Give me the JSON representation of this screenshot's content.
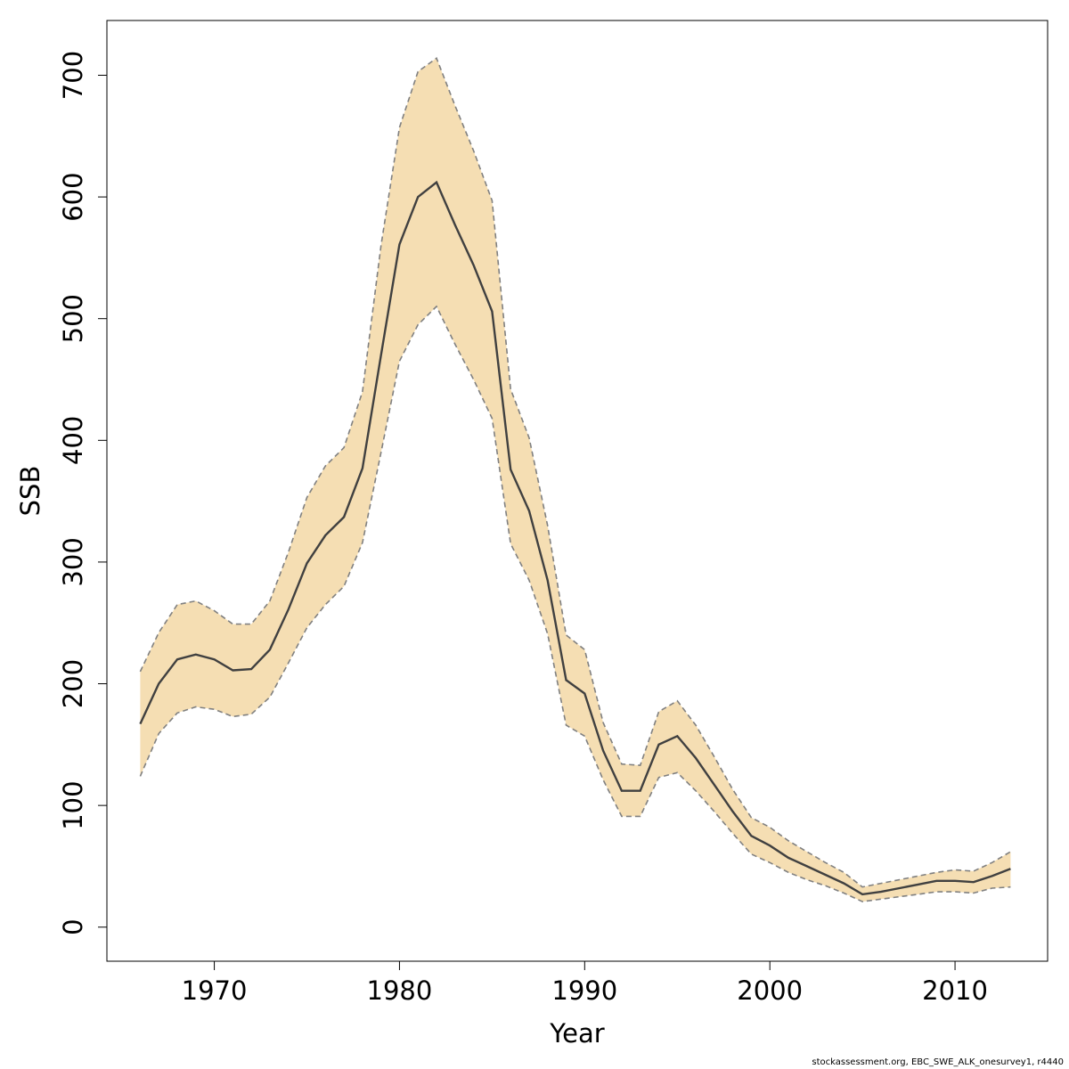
{
  "chart_data": {
    "type": "area",
    "title": "",
    "xlabel": "Year",
    "ylabel": "SSB",
    "xlim": [
      1964.2,
      2015.0
    ],
    "ylim": [
      -28,
      745
    ],
    "x_ticks": [
      1970,
      1980,
      1990,
      2000,
      2010
    ],
    "y_ticks": [
      0,
      100,
      200,
      300,
      400,
      500,
      600,
      700
    ],
    "grid": false,
    "legend": "none",
    "colors": {
      "band": "#f5deb3",
      "line": "#404040",
      "bounds": "#808080",
      "frame": "#000000"
    },
    "x": [
      1966,
      1967,
      1968,
      1969,
      1970,
      1971,
      1972,
      1973,
      1974,
      1975,
      1976,
      1977,
      1978,
      1979,
      1980,
      1981,
      1982,
      1983,
      1984,
      1985,
      1986,
      1987,
      1988,
      1989,
      1990,
      1991,
      1992,
      1993,
      1994,
      1995,
      1996,
      1997,
      1998,
      1999,
      2000,
      2001,
      2002,
      2003,
      2004,
      2005,
      2006,
      2007,
      2008,
      2009,
      2010,
      2011,
      2012,
      2013
    ],
    "series": [
      {
        "name": "",
        "role": "estimate",
        "values": [
          167,
          200,
          220,
          224,
          220,
          211,
          212,
          228,
          261,
          299,
          322,
          337,
          377,
          470,
          561,
          600,
          612,
          577,
          544,
          506,
          376,
          342,
          285,
          203,
          192,
          145,
          112,
          112,
          150,
          157,
          139,
          117,
          95,
          75,
          67,
          57,
          50,
          43,
          36,
          27,
          29,
          32,
          35,
          38,
          38,
          37,
          42,
          48
        ]
      },
      {
        "name": "",
        "role": "upper",
        "values": [
          210,
          242,
          265,
          268,
          260,
          249,
          249,
          268,
          308,
          353,
          379,
          394,
          440,
          560,
          657,
          703,
          714,
          675,
          638,
          597,
          442,
          402,
          330,
          240,
          228,
          168,
          134,
          133,
          177,
          186,
          166,
          140,
          113,
          90,
          82,
          71,
          62,
          53,
          45,
          33,
          36,
          39,
          42,
          45,
          47,
          46,
          53,
          62
        ]
      },
      {
        "name": "",
        "role": "lower",
        "values": [
          124,
          159,
          176,
          181,
          179,
          173,
          175,
          189,
          217,
          246,
          265,
          280,
          316,
          390,
          465,
          495,
          510,
          479,
          450,
          418,
          315,
          285,
          241,
          166,
          157,
          121,
          91,
          91,
          123,
          127,
          112,
          95,
          77,
          60,
          53,
          45,
          39,
          34,
          28,
          21,
          23,
          25,
          27,
          29,
          29,
          28,
          32,
          33
        ]
      }
    ]
  },
  "footnote": "stockassessment.org, EBC_SWE_ALK_onesurvey1, r4440"
}
